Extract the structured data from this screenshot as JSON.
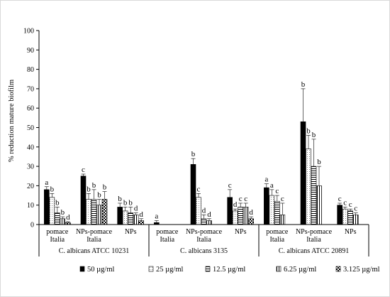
{
  "chart_data": {
    "type": "bar",
    "ylabel": "% reduction mature biofilm",
    "ylim": [
      0,
      100
    ],
    "yticks": [
      0,
      10,
      20,
      30,
      40,
      50,
      60,
      70,
      80,
      90,
      100
    ],
    "grid": false,
    "legend_position": "bottom",
    "groups": [
      {
        "name": "C. albicans ATCC 10231",
        "categories": [
          {
            "label": [
              "pomace",
              "Italia"
            ],
            "values": [
              18,
              14,
              6,
              3,
              1
            ],
            "errors": [
              1.5,
              2,
              3,
              1,
              0.5
            ],
            "letters": [
              "a",
              "b",
              "b",
              "b",
              "d"
            ]
          },
          {
            "label": [
              "NPs-pomace",
              "Italia"
            ],
            "values": [
              25,
              13,
              13,
              10,
              13
            ],
            "errors": [
              1,
              3,
              5,
              3,
              4
            ],
            "letters": [
              "c",
              "b",
              "b",
              "b",
              "b"
            ]
          },
          {
            "label": [
              "NPs"
            ],
            "values": [
              9,
              7,
              6,
              5,
              2
            ],
            "errors": [
              2,
              2,
              3,
              1,
              1
            ],
            "letters": [
              "b",
              "b",
              "b",
              "d",
              "d"
            ]
          }
        ]
      },
      {
        "name": "C. albicans 3135",
        "categories": [
          {
            "label": [
              "pomace",
              "Italia"
            ],
            "values": [
              1,
              0,
              0,
              0,
              0
            ],
            "errors": [
              1,
              0,
              0,
              0,
              0
            ],
            "letters": [
              "a",
              "",
              "",
              "",
              ""
            ]
          },
          {
            "label": [
              "NPs-pomace",
              "Italia"
            ],
            "values": [
              31,
              14,
              3,
              2,
              0
            ],
            "errors": [
              3,
              2,
              2,
              1,
              0
            ],
            "letters": [
              "b",
              "c",
              "d",
              "d",
              ""
            ]
          },
          {
            "label": [
              "NPs"
            ],
            "values": [
              14,
              7,
              9,
              9,
              3
            ],
            "errors": [
              4,
              1,
              2,
              2,
              1
            ],
            "letters": [
              "c",
              "d",
              "c",
              "c",
              "d"
            ]
          }
        ]
      },
      {
        "name": "C. albicans ATCC 20891",
        "categories": [
          {
            "label": [
              "pomace",
              "Italia"
            ],
            "values": [
              19,
              15,
              12,
              5,
              0
            ],
            "errors": [
              2,
              3,
              3,
              6,
              0
            ],
            "letters": [
              "a",
              "a",
              "c",
              "c",
              ""
            ]
          },
          {
            "label": [
              "NPs-pomace",
              "Italia"
            ],
            "values": [
              53,
              39,
              30,
              20,
              0
            ],
            "errors": [
              17,
              7,
              14,
              10,
              0
            ],
            "letters": [
              "b",
              "b",
              "b",
              "b",
              ""
            ]
          },
          {
            "label": [
              "NPs"
            ],
            "values": [
              10,
              8,
              7,
              5,
              0
            ],
            "errors": [
              1,
              1,
              1,
              1,
              0
            ],
            "letters": [
              "c",
              "c",
              "c",
              "c",
              ""
            ]
          }
        ]
      }
    ],
    "series": [
      {
        "name": "50 µg/ml",
        "fill": "solid-black"
      },
      {
        "name": "25 µg/ml",
        "fill": "dotted-white"
      },
      {
        "name": "12.5 µg/ml",
        "fill": "horizontal-lines"
      },
      {
        "name": "6.25 µg/ml",
        "fill": "vertical-lines"
      },
      {
        "name": "3.125  µg/ml",
        "fill": "checker"
      }
    ],
    "colors": {
      "bar_outline": "#000000",
      "solid": "#000000",
      "axis": "#000000",
      "frame": "#d9d9d9"
    }
  }
}
